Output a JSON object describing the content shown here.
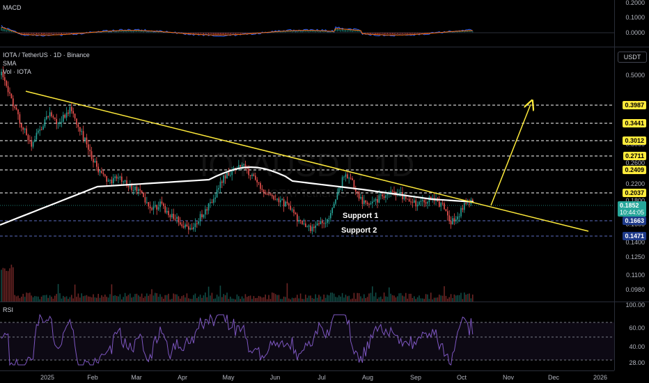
{
  "macd": {
    "title": "MACD",
    "axis_labels": [
      "0.2000",
      "0.1000",
      "0.0000"
    ]
  },
  "main": {
    "symbol_line": "IOTA / TetherUS · 1D · Binance",
    "sma_label": "SMA",
    "vol_label": "Vol · IOTA",
    "currency_button": "USDT",
    "watermark_symbol": "IOTAUSDT, 1D",
    "watermark_name": "IOTA / TetherUS",
    "price_labels": [
      "0.5000",
      "0.3000",
      "0.2600",
      "0.2200",
      "0.1800",
      "0.1600",
      "0.1400",
      "0.1250",
      "0.1100",
      "0.0980"
    ],
    "level_tags": [
      "0.3987",
      "0.3441",
      "0.3012",
      "0.2711",
      "0.2409",
      "0.2037"
    ],
    "current_price": "0.1852",
    "countdown": "10:44:05",
    "support1_price": "0.1663",
    "support2_price": "0.1471",
    "support1_label": "Support 1",
    "support2_label": "Support 2",
    "colors": {
      "up": "#26a69a",
      "down": "#ef5350",
      "trendline": "#ffeb3b",
      "sma": "#ffffff",
      "level": "#ffffff"
    }
  },
  "rsi": {
    "title": "RSI",
    "axis_labels": [
      "100.00",
      "60.00",
      "40.00",
      "28.00"
    ],
    "line_color": "#7e57c2"
  },
  "time_axis": [
    "2025",
    "Feb",
    "Mar",
    "Apr",
    "May",
    "Jun",
    "Jul",
    "Aug",
    "Sep",
    "Oct",
    "Nov",
    "Dec",
    "2026"
  ]
}
